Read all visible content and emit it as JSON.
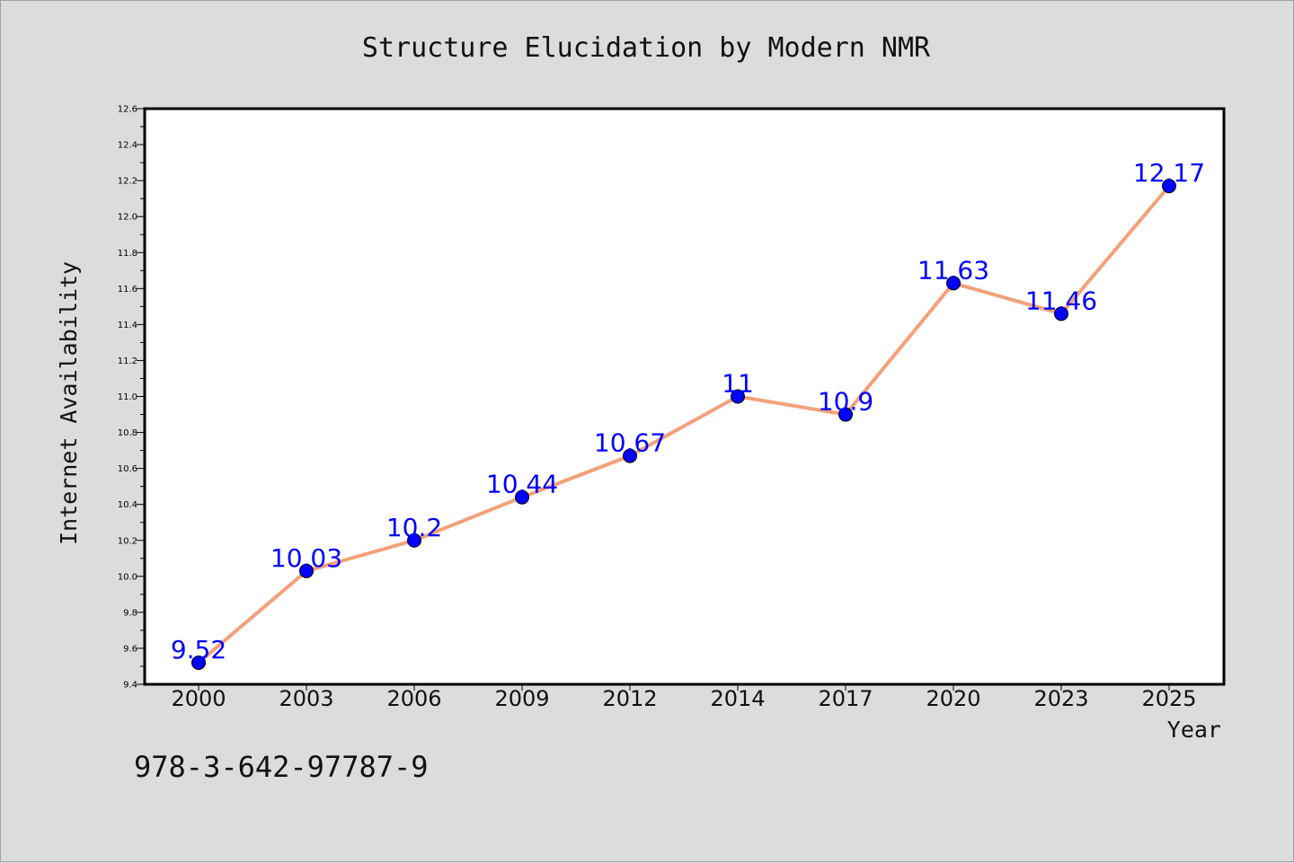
{
  "chart_data": {
    "type": "line",
    "title": "Structure Elucidation by Modern NMR",
    "xlabel": "Year",
    "ylabel": "Internet Availability",
    "categories": [
      "2000",
      "2003",
      "2006",
      "2009",
      "2012",
      "2014",
      "2017",
      "2020",
      "2023",
      "2025"
    ],
    "series": [
      {
        "values": [
          9.52,
          10.03,
          10.2,
          10.44,
          10.67,
          11,
          10.9,
          11.63,
          11.46,
          12.17
        ],
        "labels": [
          "9.52",
          "10.03",
          "10.2",
          "10.44",
          "10.67",
          "11",
          "10.9",
          "11.63",
          "11.46",
          "12.17"
        ]
      }
    ],
    "ylim": [
      9.4,
      12.6
    ],
    "yticks": [
      "9.4",
      "9.6",
      "9.8",
      "10.0",
      "10.2",
      "10.4",
      "10.6",
      "10.8",
      "11.0",
      "11.2",
      "11.4",
      "11.6",
      "11.8",
      "12.0",
      "12.2",
      "12.4",
      "12.6"
    ],
    "grid": false,
    "legend": "none",
    "colors": {
      "line": "#f4a07a",
      "marker": "#0000ff",
      "data_label": "#0000ff",
      "background": "#dcdcdc",
      "plot_background": "#ffffff"
    }
  },
  "footer": {
    "isbn": "978-3-642-97787-9"
  }
}
